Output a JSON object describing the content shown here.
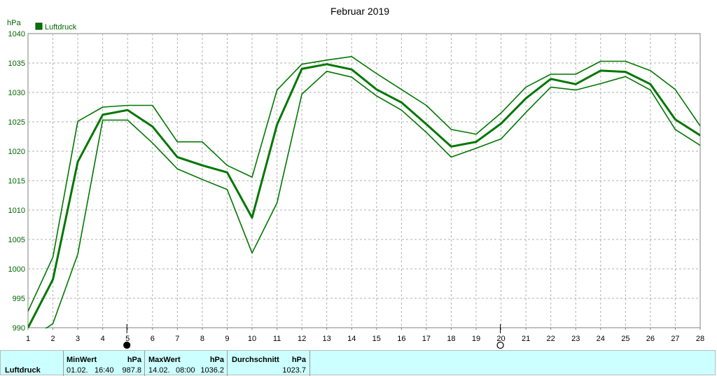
{
  "chart_data": {
    "type": "line",
    "title": "Februar 2019",
    "ylabel": "hPa",
    "ylim": [
      990,
      1040
    ],
    "yticks": [
      990,
      995,
      1000,
      1005,
      1010,
      1015,
      1020,
      1025,
      1030,
      1035,
      1040
    ],
    "x": [
      1,
      2,
      3,
      4,
      5,
      6,
      7,
      8,
      9,
      10,
      11,
      12,
      13,
      14,
      15,
      16,
      17,
      18,
      19,
      20,
      21,
      22,
      23,
      24,
      25,
      26,
      27,
      28
    ],
    "xlim": [
      1,
      28
    ],
    "grid": true,
    "legend": {
      "position": "top-left",
      "entries": [
        "Luftdruck"
      ]
    },
    "series": [
      {
        "name": "Luftdruck",
        "role": "mean",
        "values": [
          990.0,
          998.2,
          1018.2,
          1026.2,
          1027.0,
          1024.2,
          1019.0,
          1017.6,
          1016.4,
          1008.7,
          1024.5,
          1034.0,
          1034.8,
          1033.9,
          1030.5,
          1028.3,
          1024.6,
          1020.8,
          1021.6,
          1024.7,
          1029.0,
          1032.3,
          1031.4,
          1033.7,
          1033.5,
          1031.4,
          1025.4,
          1022.7
        ]
      },
      {
        "role": "max",
        "values": [
          992.8,
          1002.0,
          1025.1,
          1027.5,
          1027.8,
          1027.8,
          1021.6,
          1021.6,
          1017.6,
          1015.6,
          1030.4,
          1034.8,
          1035.5,
          1036.1,
          1033.2,
          1030.5,
          1027.8,
          1023.7,
          1022.9,
          1026.5,
          1030.9,
          1033.1,
          1033.1,
          1035.3,
          1035.3,
          1033.7,
          1030.5,
          1024.3
        ]
      },
      {
        "role": "min",
        "values": [
          987.8,
          990.7,
          1002.5,
          1025.3,
          1025.3,
          1021.4,
          1017.0,
          1015.2,
          1013.5,
          1002.7,
          1011.2,
          1029.7,
          1033.6,
          1032.6,
          1029.4,
          1027.0,
          1023.2,
          1019.0,
          1020.5,
          1022.1,
          1026.6,
          1030.9,
          1030.4,
          1031.5,
          1032.7,
          1030.4,
          1023.7,
          1021.0
        ]
      }
    ],
    "markers": [
      {
        "day": 5,
        "symbol": "full-moon"
      },
      {
        "day": 20,
        "symbol": "new-moon"
      }
    ]
  },
  "colors": {
    "line": "#007700",
    "grid": "#b0b0b0",
    "axis_text": "#006600",
    "footer_bg": "#ccffff"
  },
  "footer": {
    "row_label": "Luftdruck",
    "min": {
      "header": "MinWert",
      "unit": "hPa",
      "date": "01.02.",
      "time": "16:40",
      "value": "987.8"
    },
    "max": {
      "header": "MaxWert",
      "unit": "hPa",
      "date": "14.02.",
      "time": "08:00",
      "value": "1036.2"
    },
    "avg": {
      "header": "Durchschnitt",
      "unit": "hPa",
      "value": "1023.7"
    }
  }
}
